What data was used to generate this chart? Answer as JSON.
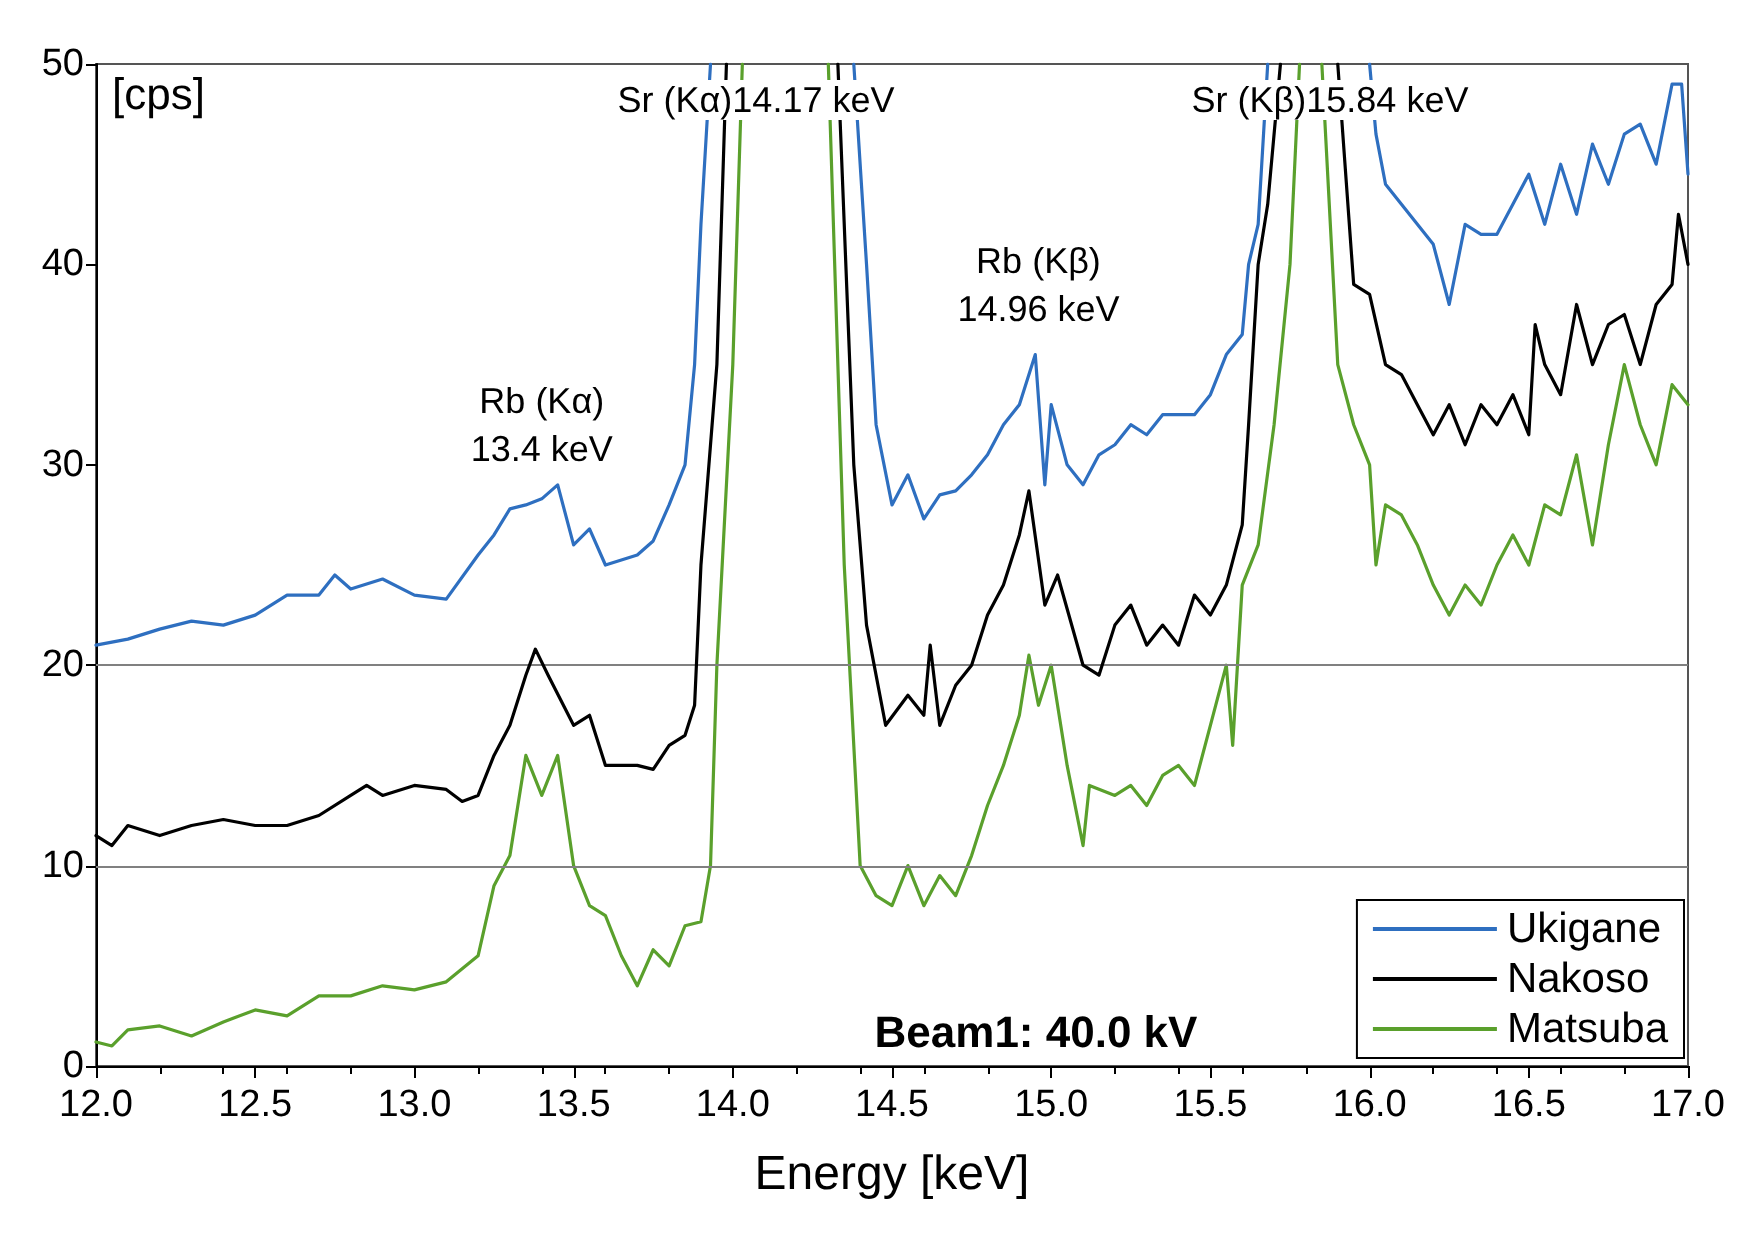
{
  "chart_data": {
    "type": "line",
    "xlabel": "Energy [keV]",
    "ylabel": "[cps]",
    "xlim": [
      12,
      17
    ],
    "xticks": [
      {
        "value": 12,
        "label": "12.0"
      },
      {
        "value": 12.5,
        "label": "12.5"
      },
      {
        "value": 13,
        "label": "13.0"
      },
      {
        "value": 13.5,
        "label": "13.5"
      },
      {
        "value": 14,
        "label": "14.0"
      },
      {
        "value": 14.5,
        "label": "14.5"
      },
      {
        "value": 15,
        "label": "15.0"
      },
      {
        "value": 15.5,
        "label": "15.5"
      },
      {
        "value": 16,
        "label": "16.0"
      },
      {
        "value": 16.5,
        "label": "16.5"
      },
      {
        "value": 17,
        "label": "17.0"
      }
    ],
    "ylim": [
      0,
      50
    ],
    "yticks": [
      0,
      10,
      20,
      30,
      40,
      50
    ],
    "legend": "bottom right",
    "marker": "none",
    "line_style": "solid",
    "ref_lines": [
      {
        "axis": "y",
        "value": 10,
        "color": "#808080"
      },
      {
        "axis": "y",
        "value": 20,
        "color": "#808080"
      }
    ],
    "annotations": [
      {
        "text": "Rb (Kα)\n13.4 keV",
        "x": 13.4,
        "y": 29
      },
      "Sr (Kα)14.17 keV",
      {
        "text": "Rb (Kβ)\n14.96 keV",
        "x": 14.96,
        "y": 36
      },
      "Sr (Kβ)15.84 keV",
      "Beam1: 40.0 kV"
    ],
    "series": [
      {
        "name": "Ukigane",
        "color": "#2e6fc0",
        "x": [
          12.0,
          12.1,
          12.2,
          12.3,
          12.4,
          12.5,
          12.6,
          12.7,
          12.75,
          12.8,
          12.9,
          13.0,
          13.1,
          13.2,
          13.25,
          13.3,
          13.35,
          13.4,
          13.45,
          13.5,
          13.55,
          13.6,
          13.7,
          13.75,
          13.8,
          13.85,
          13.88,
          13.9,
          13.93,
          14.1,
          14.38,
          14.42,
          14.45,
          14.5,
          14.55,
          14.6,
          14.65,
          14.7,
          14.75,
          14.8,
          14.85,
          14.9,
          14.95,
          14.98,
          15.0,
          15.05,
          15.1,
          15.15,
          15.2,
          15.25,
          15.3,
          15.35,
          15.4,
          15.45,
          15.5,
          15.55,
          15.6,
          15.62,
          15.65,
          15.68,
          15.85,
          16.0,
          16.02,
          16.05,
          16.1,
          16.15,
          16.2,
          16.25,
          16.3,
          16.35,
          16.4,
          16.45,
          16.5,
          16.55,
          16.6,
          16.65,
          16.7,
          16.75,
          16.8,
          16.85,
          16.9,
          16.95,
          16.98,
          17.0
        ],
        "values": [
          21,
          21.3,
          21.8,
          22.2,
          22,
          22.5,
          23.5,
          23.5,
          24.5,
          23.8,
          24.3,
          23.5,
          23.3,
          25.5,
          26.5,
          27.8,
          28,
          28.3,
          29,
          26,
          26.8,
          25,
          25.5,
          26.2,
          28,
          30,
          35,
          42,
          50,
          null,
          50,
          40,
          32,
          28,
          29.5,
          27.3,
          28.5,
          28.7,
          29.5,
          30.5,
          32,
          33,
          35.5,
          29,
          33,
          30,
          29,
          30.5,
          31,
          32,
          31.5,
          32.5,
          32.5,
          32.5,
          33.5,
          35.5,
          36.5,
          40,
          42,
          50,
          null,
          50,
          46.5,
          44,
          43,
          42,
          41,
          38,
          42,
          41.5,
          41.5,
          43,
          44.5,
          42,
          45,
          42.5,
          46,
          44,
          46.5,
          47,
          45,
          49,
          49,
          44.5
        ]
      },
      {
        "name": "Nakoso",
        "color": "#000000",
        "x": [
          12.0,
          12.05,
          12.1,
          12.2,
          12.3,
          12.4,
          12.5,
          12.6,
          12.7,
          12.8,
          12.85,
          12.9,
          13.0,
          13.1,
          13.15,
          13.2,
          13.25,
          13.3,
          13.35,
          13.38,
          13.42,
          13.5,
          13.55,
          13.6,
          13.7,
          13.75,
          13.8,
          13.85,
          13.88,
          13.9,
          13.95,
          13.98,
          14.1,
          14.33,
          14.38,
          14.42,
          14.48,
          14.55,
          14.6,
          14.62,
          14.65,
          14.7,
          14.75,
          14.8,
          14.85,
          14.9,
          14.93,
          14.98,
          15.02,
          15.1,
          15.15,
          15.2,
          15.25,
          15.3,
          15.35,
          15.4,
          15.45,
          15.5,
          15.55,
          15.6,
          15.62,
          15.65,
          15.68,
          15.72,
          15.8,
          15.9,
          15.95,
          16.0,
          16.05,
          16.1,
          16.15,
          16.2,
          16.25,
          16.3,
          16.35,
          16.4,
          16.45,
          16.5,
          16.52,
          16.55,
          16.6,
          16.65,
          16.7,
          16.75,
          16.8,
          16.85,
          16.9,
          16.95,
          16.97,
          17.0
        ],
        "values": [
          11.5,
          11,
          12,
          11.5,
          12,
          12.3,
          12,
          12,
          12.5,
          13.5,
          14,
          13.5,
          14,
          13.8,
          13.2,
          13.5,
          15.5,
          17,
          19.5,
          20.8,
          19.5,
          17,
          17.5,
          15,
          15,
          14.8,
          16,
          16.5,
          18,
          25,
          35,
          50,
          null,
          50,
          30,
          22,
          17,
          18.5,
          17.5,
          21,
          17,
          19,
          20,
          22.5,
          24,
          26.5,
          28.7,
          23,
          24.5,
          20,
          19.5,
          22,
          23,
          21,
          22,
          21,
          23.5,
          22.5,
          24,
          27,
          32,
          40,
          43,
          50,
          null,
          50,
          39,
          38.5,
          35,
          34.5,
          33,
          31.5,
          33,
          31,
          33,
          32,
          33.5,
          31.5,
          37,
          35,
          33.5,
          38,
          35,
          37,
          37.5,
          35,
          38,
          39,
          42.5,
          40
        ]
      },
      {
        "name": "Matsuba",
        "color": "#5aa02c",
        "x": [
          12.0,
          12.05,
          12.1,
          12.2,
          12.3,
          12.4,
          12.5,
          12.6,
          12.7,
          12.8,
          12.9,
          13.0,
          13.1,
          13.2,
          13.25,
          13.3,
          13.35,
          13.4,
          13.45,
          13.5,
          13.55,
          13.6,
          13.65,
          13.7,
          13.75,
          13.8,
          13.85,
          13.9,
          13.93,
          13.95,
          14.0,
          14.03,
          14.15,
          14.3,
          14.35,
          14.4,
          14.45,
          14.5,
          14.55,
          14.6,
          14.65,
          14.7,
          14.75,
          14.8,
          14.85,
          14.9,
          14.93,
          14.96,
          15.0,
          15.05,
          15.1,
          15.12,
          15.2,
          15.25,
          15.3,
          15.35,
          15.4,
          15.45,
          15.5,
          15.55,
          15.57,
          15.6,
          15.65,
          15.7,
          15.75,
          15.78,
          15.82,
          15.85,
          15.9,
          15.95,
          16.0,
          16.02,
          16.05,
          16.1,
          16.15,
          16.2,
          16.25,
          16.3,
          16.35,
          16.4,
          16.45,
          16.5,
          16.55,
          16.6,
          16.65,
          16.7,
          16.75,
          16.8,
          16.85,
          16.9,
          16.95,
          17.0
        ],
        "values": [
          1.2,
          1,
          1.8,
          2,
          1.5,
          2.2,
          2.8,
          2.5,
          3.5,
          3.5,
          4,
          3.8,
          4.2,
          5.5,
          9,
          10.5,
          15.5,
          13.5,
          15.5,
          10,
          8,
          7.5,
          5.5,
          4,
          5.8,
          5,
          7,
          7.2,
          10,
          20,
          35,
          50,
          null,
          50,
          25,
          10,
          8.5,
          8,
          10,
          8,
          9.5,
          8.5,
          10.5,
          13,
          15,
          17.5,
          20.5,
          18,
          20,
          15,
          11,
          14,
          13.5,
          14,
          13,
          14.5,
          15,
          14,
          17,
          20,
          16,
          24,
          26,
          32,
          40,
          50,
          null,
          50,
          35,
          32,
          30,
          25,
          28,
          27.5,
          26,
          24,
          22.5,
          24,
          23,
          25,
          26.5,
          25,
          28,
          27.5,
          30.5,
          26,
          31,
          35,
          32,
          30,
          34,
          33
        ]
      }
    ]
  }
}
